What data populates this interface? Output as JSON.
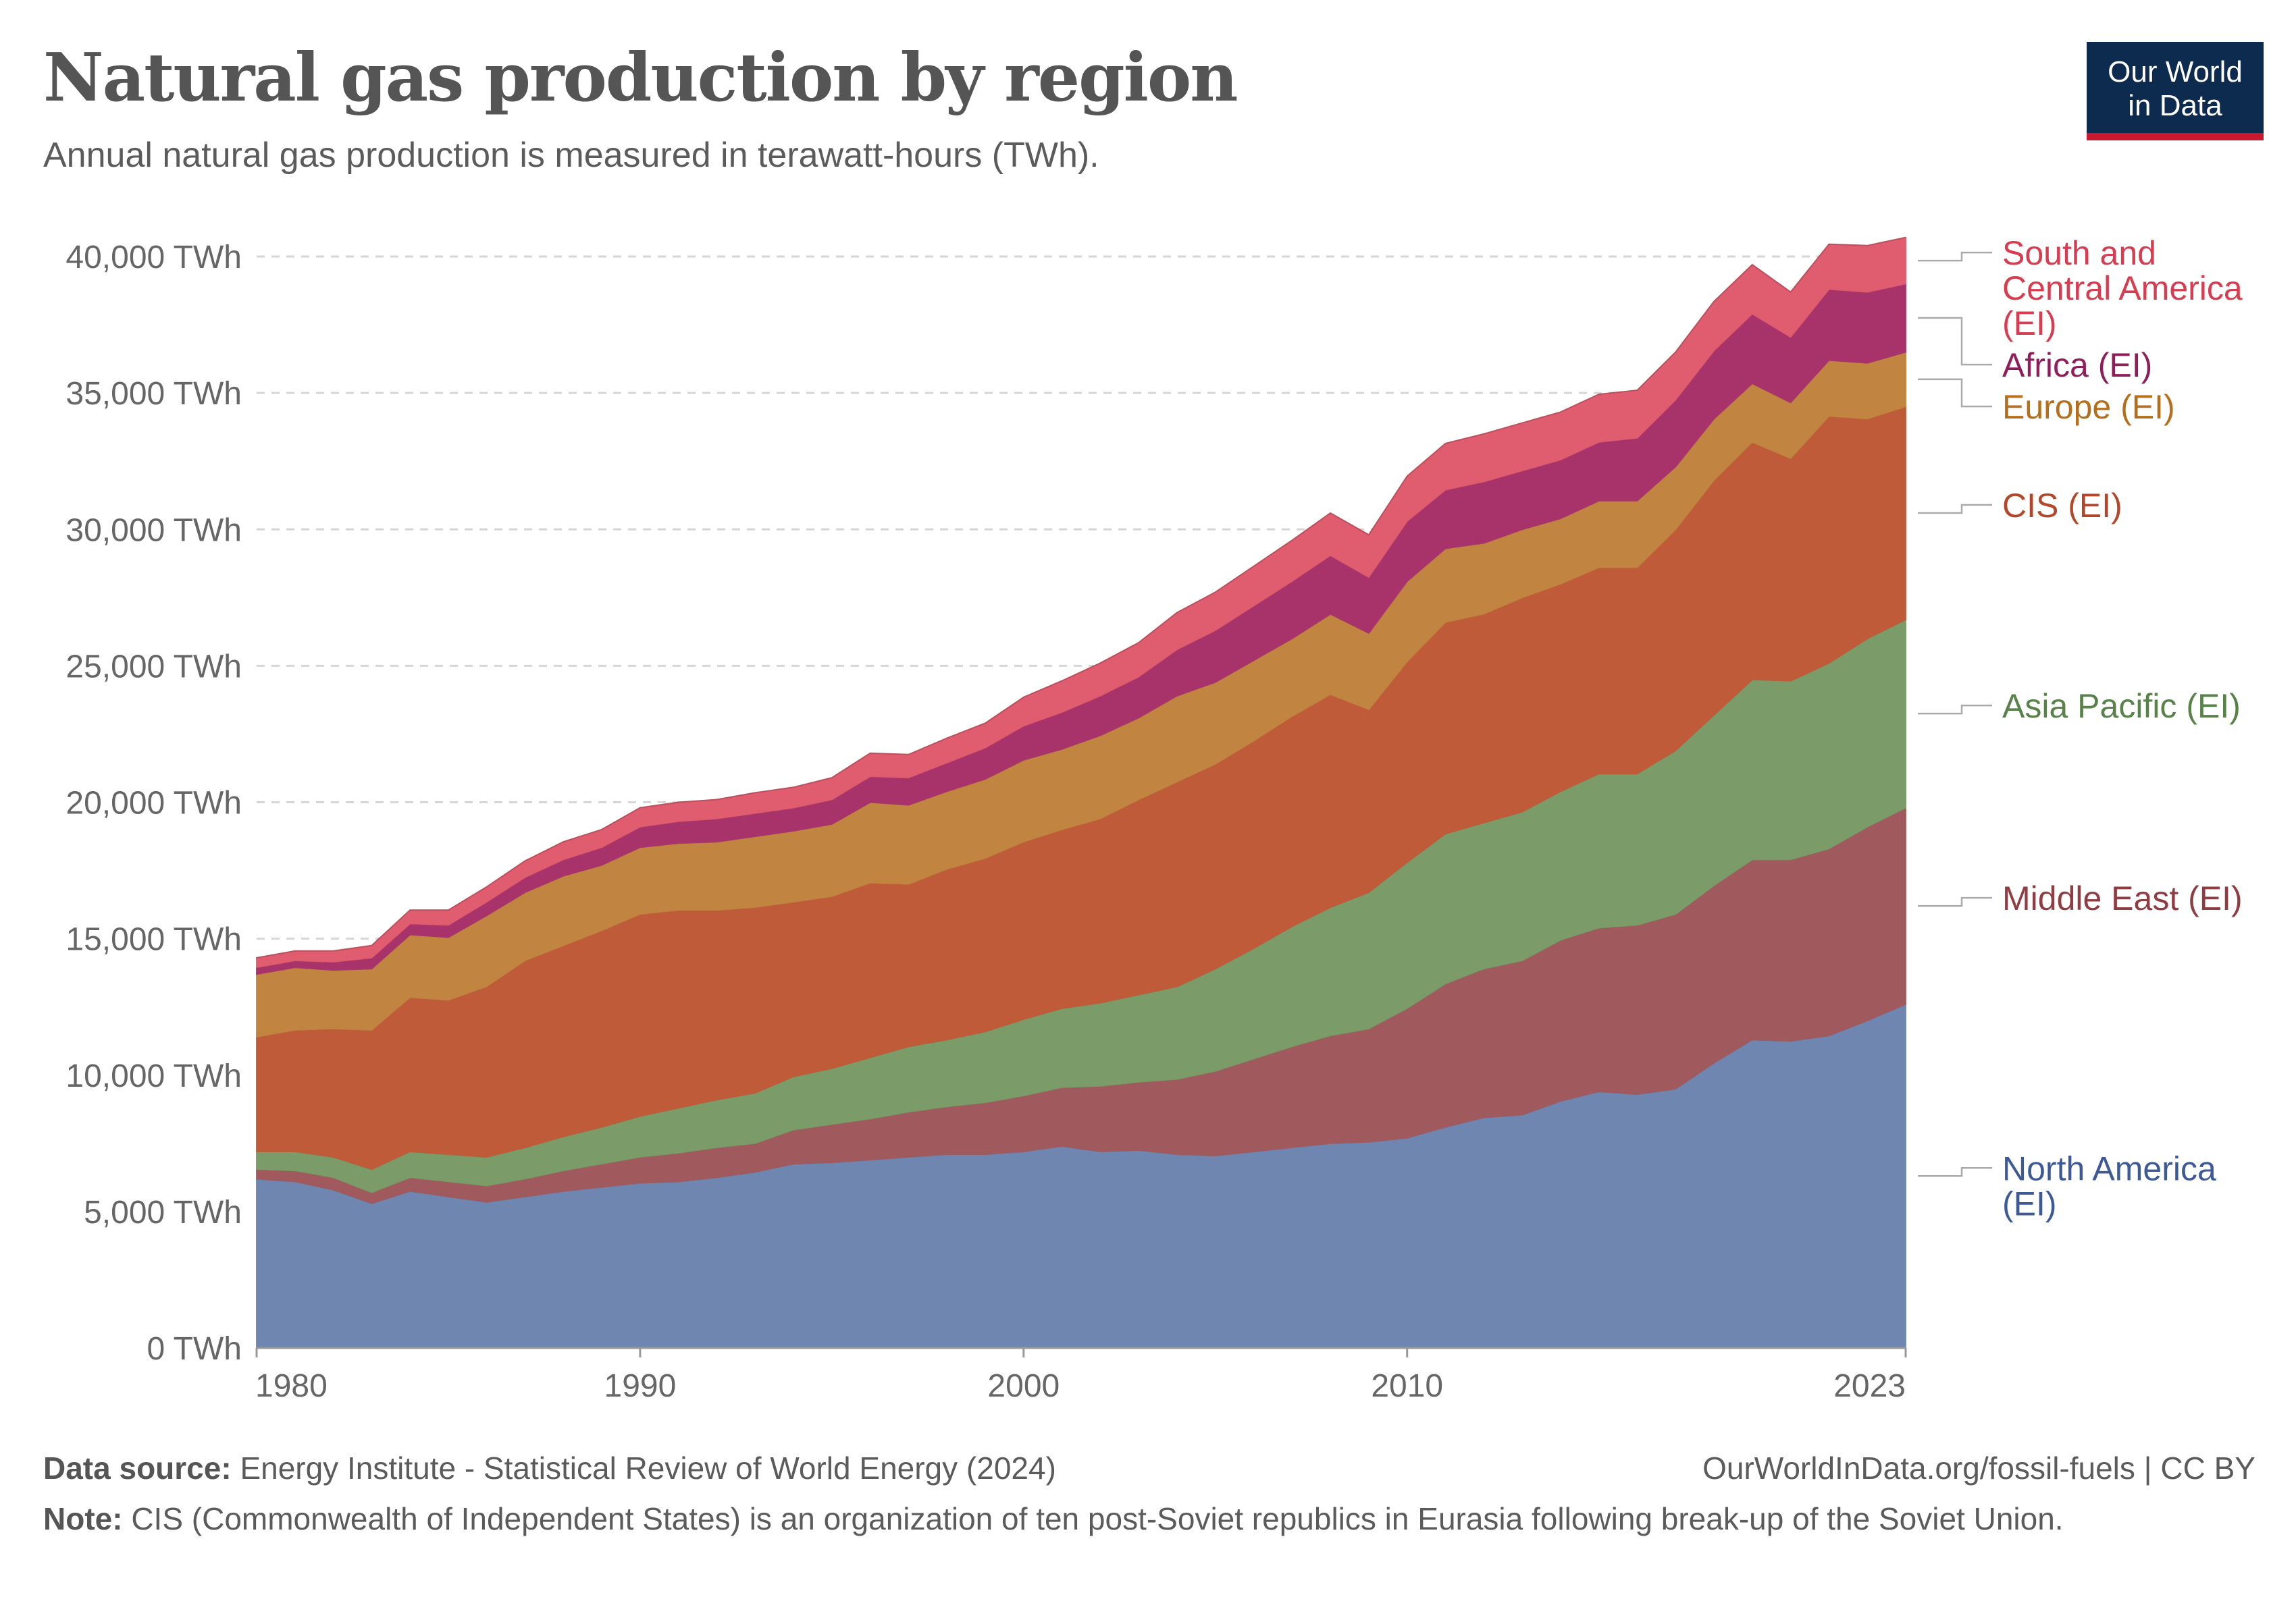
{
  "header": {
    "title": "Natural gas production by region",
    "subtitle": "Annual natural gas production is measured in terawatt-hours (TWh).",
    "logo_line1": "Our World",
    "logo_line2": "in Data"
  },
  "footer": {
    "source_label": "Data source:",
    "source_text": "Energy Institute - Statistical Review of World Energy (2024)",
    "url_text": "OurWorldInData.org/fossil-fuels | CC BY",
    "note_label": "Note:",
    "note_text": "CIS (Commonwealth of Independent States) is an organization of ten post-Soviet republics in Eurasia following break-up of the Soviet Union."
  },
  "chart_data": {
    "type": "area",
    "stacked": true,
    "ylim": [
      0,
      40000
    ],
    "yticks": [
      0,
      5000,
      10000,
      15000,
      20000,
      25000,
      30000,
      35000,
      40000
    ],
    "ytick_labels": [
      "0 TWh",
      "5,000 TWh",
      "10,000 TWh",
      "15,000 TWh",
      "20,000 TWh",
      "25,000 TWh",
      "30,000 TWh",
      "35,000 TWh",
      "40,000 TWh"
    ],
    "xlim": [
      1980,
      2023
    ],
    "xticks": [
      1980,
      1990,
      2000,
      2010,
      2023
    ],
    "xtick_labels": [
      "1980",
      "1990",
      "2000",
      "2010",
      "2023"
    ],
    "grid": "horizontal-dashed",
    "legend": "right-inline",
    "x": [
      1980,
      1981,
      1982,
      1983,
      1984,
      1985,
      1986,
      1987,
      1988,
      1989,
      1990,
      1991,
      1992,
      1993,
      1994,
      1995,
      1996,
      1997,
      1998,
      1999,
      2000,
      2001,
      2002,
      2003,
      2004,
      2005,
      2006,
      2007,
      2008,
      2009,
      2010,
      2011,
      2012,
      2013,
      2014,
      2015,
      2016,
      2017,
      2018,
      2019,
      2020,
      2021,
      2022,
      2023
    ],
    "series": [
      {
        "name_lines": [
          "North America",
          "(EI)"
        ],
        "color": "#6f87b0",
        "label_color": "#3d5a96",
        "values": [
          6200,
          6100,
          5800,
          5300,
          5750,
          5550,
          5350,
          5550,
          5750,
          5900,
          6050,
          6100,
          6250,
          6450,
          6750,
          6800,
          6900,
          7000,
          7100,
          7100,
          7200,
          7400,
          7200,
          7250,
          7100,
          7050,
          7200,
          7350,
          7500,
          7550,
          7700,
          8100,
          8450,
          8550,
          9050,
          9400,
          9300,
          9500,
          10450,
          11300,
          11250,
          11450,
          12000,
          12600
        ]
      },
      {
        "name_lines": [
          "Middle East (EI)"
        ],
        "color": "#a05a5e",
        "label_color": "#8f3d42",
        "values": [
          350,
          400,
          450,
          400,
          500,
          550,
          600,
          650,
          750,
          850,
          950,
          1050,
          1100,
          1050,
          1250,
          1400,
          1500,
          1650,
          1750,
          1900,
          2050,
          2150,
          2400,
          2500,
          2750,
          3100,
          3400,
          3700,
          3950,
          4150,
          4750,
          5250,
          5450,
          5650,
          5900,
          6000,
          6200,
          6400,
          6500,
          6600,
          6650,
          6850,
          7100,
          7200
        ]
      },
      {
        "name_lines": [
          "Asia Pacific (EI)"
        ],
        "color": "#7b9c68",
        "label_color": "#58824a",
        "values": [
          650,
          700,
          750,
          850,
          950,
          1000,
          1050,
          1150,
          1250,
          1350,
          1500,
          1650,
          1750,
          1850,
          1950,
          2050,
          2250,
          2400,
          2450,
          2600,
          2800,
          2900,
          3050,
          3200,
          3400,
          3750,
          4050,
          4400,
          4700,
          5000,
          5350,
          5500,
          5350,
          5450,
          5450,
          5650,
          5550,
          6000,
          6250,
          6600,
          6550,
          6800,
          6900,
          6900
        ]
      },
      {
        "name_lines": [
          "CIS (EI)"
        ],
        "color": "#c05b39",
        "label_color": "#b4472a",
        "values": [
          4200,
          4450,
          4700,
          5100,
          5650,
          5650,
          6250,
          6850,
          7000,
          7200,
          7400,
          7250,
          6950,
          6800,
          6400,
          6300,
          6400,
          5950,
          6250,
          6350,
          6500,
          6550,
          6750,
          7150,
          7500,
          7500,
          7600,
          7700,
          7800,
          6700,
          7350,
          7750,
          7650,
          7850,
          7600,
          7550,
          7550,
          8100,
          8600,
          8700,
          8150,
          9050,
          8050,
          7800
        ]
      },
      {
        "name_lines": [
          "Europe (EI)"
        ],
        "color": "#c28441",
        "label_color": "#b56f1c",
        "values": [
          2300,
          2300,
          2150,
          2250,
          2300,
          2300,
          2600,
          2500,
          2550,
          2400,
          2450,
          2450,
          2500,
          2600,
          2600,
          2650,
          2950,
          2900,
          2850,
          2900,
          3000,
          2950,
          3050,
          3000,
          3150,
          3000,
          2950,
          2850,
          2950,
          2800,
          2950,
          2700,
          2600,
          2500,
          2400,
          2450,
          2450,
          2300,
          2250,
          2150,
          2050,
          2050,
          2050,
          2000
        ]
      },
      {
        "name_lines": [
          "Africa (EI)"
        ],
        "color": "#a8336b",
        "label_color": "#8f1d5a",
        "values": [
          250,
          250,
          300,
          400,
          400,
          450,
          500,
          550,
          600,
          650,
          750,
          800,
          850,
          850,
          850,
          900,
          950,
          1000,
          1050,
          1150,
          1250,
          1350,
          1450,
          1500,
          1700,
          1900,
          2000,
          2100,
          2150,
          2050,
          2200,
          2150,
          2250,
          2150,
          2150,
          2150,
          2300,
          2450,
          2500,
          2550,
          2400,
          2600,
          2600,
          2500
        ]
      },
      {
        "name_lines": [
          "South and",
          "Central America",
          "(EI)"
        ],
        "color": "#e05d6f",
        "label_color": "#d73c50",
        "values": [
          350,
          350,
          400,
          450,
          500,
          550,
          550,
          600,
          650,
          650,
          700,
          700,
          700,
          750,
          750,
          800,
          850,
          850,
          900,
          900,
          1050,
          1150,
          1200,
          1250,
          1350,
          1400,
          1450,
          1500,
          1550,
          1550,
          1650,
          1700,
          1750,
          1750,
          1750,
          1750,
          1750,
          1750,
          1800,
          1800,
          1650,
          1650,
          1700,
          1700
        ]
      }
    ]
  }
}
